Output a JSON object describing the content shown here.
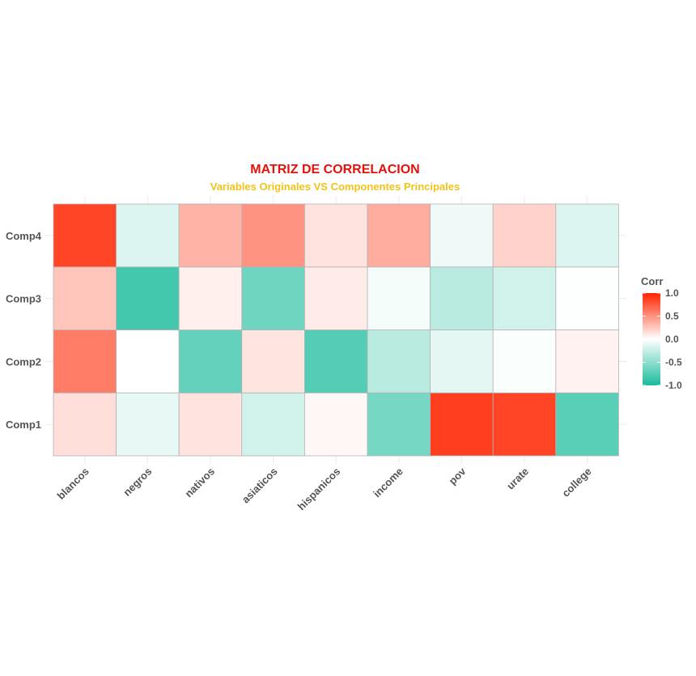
{
  "chart_data": {
    "type": "heatmap",
    "title": "MATRIZ DE CORRELACION",
    "subtitle": "Variables Originales VS Componentes Principales",
    "x_categories": [
      "blancos",
      "negros",
      "nativos",
      "asiaticos",
      "hispanicos",
      "income",
      "pov",
      "urate",
      "college"
    ],
    "y_categories": [
      "Comp1",
      "Comp2",
      "Comp3",
      "Comp4"
    ],
    "values": [
      [
        0.15,
        -0.1,
        0.13,
        -0.2,
        0.03,
        -0.6,
        0.88,
        0.85,
        -0.72
      ],
      [
        0.6,
        0.0,
        -0.68,
        0.12,
        -0.75,
        -0.3,
        -0.12,
        -0.02,
        0.06
      ],
      [
        0.27,
        -0.82,
        0.07,
        -0.63,
        0.09,
        -0.05,
        -0.3,
        -0.2,
        -0.01
      ],
      [
        0.85,
        -0.15,
        0.35,
        0.5,
        0.13,
        0.38,
        -0.07,
        0.2,
        -0.15
      ]
    ],
    "legend": {
      "title": "Corr",
      "ticks": [
        "1.0",
        "0.5",
        "0.0",
        "-0.5",
        "-1.0"
      ],
      "tick_values": [
        1.0,
        0.5,
        0.0,
        -0.5,
        -1.0
      ],
      "range": [
        -1,
        1
      ],
      "placement": "right"
    },
    "colors": {
      "low": "#1abc9c",
      "mid": "#ffffff",
      "high": "#ff2400",
      "title": "#e3120b",
      "subtitle": "#f0c31a"
    }
  }
}
